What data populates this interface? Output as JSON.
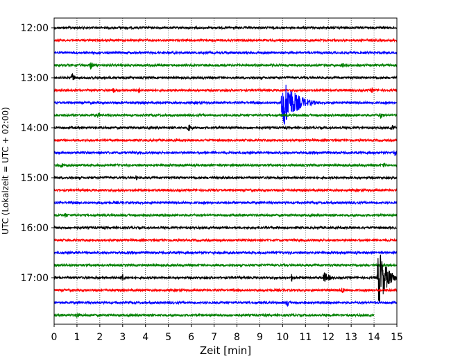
{
  "chart_data": {
    "type": "line",
    "title": "",
    "xlabel": "Zeit  [min]",
    "ylabel": "UTC (Lokalzeit = UTC + 02:00)",
    "xlim": [
      0,
      15
    ],
    "x_ticks": [
      "0",
      "1",
      "2",
      "3",
      "4",
      "5",
      "6",
      "7",
      "8",
      "9",
      "10",
      "11",
      "12",
      "13",
      "14",
      "15"
    ],
    "y_ticks": [
      "12:00",
      "13:00",
      "14:00",
      "15:00",
      "16:00",
      "17:00"
    ],
    "grid": "vertical dotted",
    "trace_interval_min": 15,
    "trace_colors": [
      "#000000",
      "#ff0000",
      "#0000ff",
      "#008000"
    ],
    "traces": [
      {
        "start": "12:00",
        "events": []
      },
      {
        "start": "12:15",
        "events": []
      },
      {
        "start": "12:30",
        "events": []
      },
      {
        "start": "12:45",
        "events": [
          {
            "t": 1.6,
            "amp": 7
          },
          {
            "t": 12.6,
            "amp": 5
          }
        ]
      },
      {
        "start": "13:00",
        "events": [
          {
            "t": 0.8,
            "amp": 8
          }
        ]
      },
      {
        "start": "13:15",
        "events": [
          {
            "t": 2.6,
            "amp": 5
          },
          {
            "t": 3.7,
            "amp": 5
          },
          {
            "t": 13.9,
            "amp": 5
          }
        ]
      },
      {
        "start": "13:30",
        "events": [
          {
            "t": 10.0,
            "amp": 40,
            "dur": 1.6
          }
        ]
      },
      {
        "start": "13:45",
        "events": [
          {
            "t": 1.9,
            "amp": 5
          },
          {
            "t": 14.3,
            "amp": 6
          }
        ]
      },
      {
        "start": "14:00",
        "events": [
          {
            "t": 5.9,
            "amp": 8
          },
          {
            "t": 14.8,
            "amp": 5
          }
        ]
      },
      {
        "start": "14:15",
        "events": []
      },
      {
        "start": "14:30",
        "events": [
          {
            "t": 14.9,
            "amp": 6
          }
        ]
      },
      {
        "start": "14:45",
        "events": [
          {
            "t": 0.3,
            "amp": 5
          },
          {
            "t": 14.4,
            "amp": 5
          }
        ]
      },
      {
        "start": "15:00",
        "events": [
          {
            "t": 3.6,
            "amp": 4
          }
        ]
      },
      {
        "start": "15:15",
        "events": []
      },
      {
        "start": "15:30",
        "events": []
      },
      {
        "start": "15:45",
        "events": [
          {
            "t": 0.5,
            "amp": 5
          }
        ]
      },
      {
        "start": "16:00",
        "events": []
      },
      {
        "start": "16:15",
        "events": []
      },
      {
        "start": "16:30",
        "events": []
      },
      {
        "start": "16:45",
        "events": []
      },
      {
        "start": "17:00",
        "events": [
          {
            "t": 3.0,
            "amp": 7
          },
          {
            "t": 10.4,
            "amp": 6
          },
          {
            "t": 11.8,
            "amp": 9,
            "dur": 0.8
          },
          {
            "t": 14.2,
            "amp": 45,
            "dur": 1.0
          }
        ]
      },
      {
        "start": "17:15",
        "events": [
          {
            "t": 12.6,
            "amp": 6
          }
        ]
      },
      {
        "start": "17:30",
        "events": [
          {
            "t": 10.2,
            "amp": 6
          }
        ]
      },
      {
        "start": "17:45",
        "events": [
          {
            "t": 1.0,
            "amp": 5
          }
        ],
        "end": 14.0
      }
    ]
  }
}
